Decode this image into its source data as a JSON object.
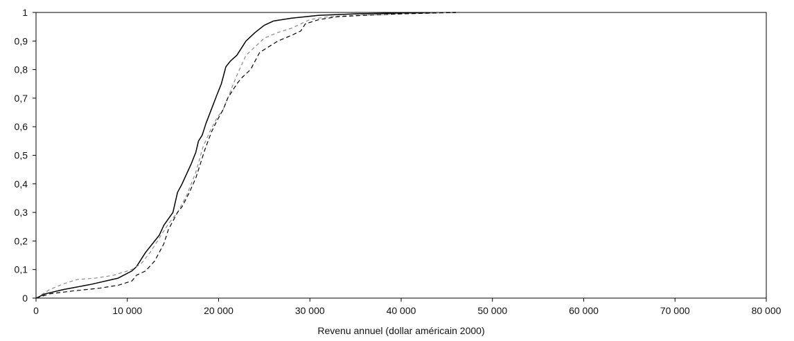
{
  "chart_data": {
    "type": "line",
    "title": "",
    "xlabel": "Revenu annuel (dollar américain 2000)",
    "ylabel": "",
    "xlim": [
      0,
      80000
    ],
    "ylim": [
      0,
      1
    ],
    "grid": false,
    "legend": "none",
    "x_ticks": [
      0,
      10000,
      20000,
      30000,
      40000,
      50000,
      60000,
      70000,
      80000
    ],
    "x_tick_labels": [
      "0",
      "10 000",
      "20 000",
      "30 000",
      "40 000",
      "50 000",
      "60 000",
      "70 000",
      "80 000"
    ],
    "y_ticks": [
      0,
      0.1,
      0.2,
      0.3,
      0.4,
      0.5,
      0.6,
      0.7,
      0.8,
      0.9,
      1
    ],
    "y_tick_labels": [
      "0",
      "0,1",
      "0,2",
      "0,3",
      "0,4",
      "0,5",
      "0,6",
      "0,7",
      "0,8",
      "0,9",
      "1"
    ],
    "series": [
      {
        "style": {
          "color": "#000000",
          "dash": "solid",
          "width": 1.5
        },
        "points": [
          [
            0,
            0
          ],
          [
            1000,
            0.015
          ],
          [
            3000,
            0.03
          ],
          [
            6000,
            0.048
          ],
          [
            9000,
            0.07
          ],
          [
            10500,
            0.095
          ],
          [
            11000,
            0.11
          ],
          [
            12000,
            0.16
          ],
          [
            13000,
            0.2
          ],
          [
            13500,
            0.22
          ],
          [
            14000,
            0.255
          ],
          [
            15000,
            0.3
          ],
          [
            15500,
            0.37
          ],
          [
            16000,
            0.4
          ],
          [
            17000,
            0.47
          ],
          [
            17500,
            0.51
          ],
          [
            17800,
            0.55
          ],
          [
            18200,
            0.57
          ],
          [
            18600,
            0.61
          ],
          [
            19200,
            0.66
          ],
          [
            19800,
            0.71
          ],
          [
            20300,
            0.75
          ],
          [
            20800,
            0.81
          ],
          [
            21300,
            0.83
          ],
          [
            22000,
            0.85
          ],
          [
            23000,
            0.9
          ],
          [
            24000,
            0.93
          ],
          [
            25000,
            0.955
          ],
          [
            26000,
            0.97
          ],
          [
            28000,
            0.98
          ],
          [
            31000,
            0.99
          ],
          [
            35000,
            0.995
          ],
          [
            40000,
            0.998
          ],
          [
            46000,
            1
          ]
        ]
      },
      {
        "style": {
          "color": "#888888",
          "dash": "5,4",
          "width": 1.2
        },
        "points": [
          [
            0,
            0
          ],
          [
            1500,
            0.03
          ],
          [
            3000,
            0.05
          ],
          [
            4500,
            0.065
          ],
          [
            6500,
            0.07
          ],
          [
            8500,
            0.08
          ],
          [
            10500,
            0.1
          ],
          [
            11500,
            0.12
          ],
          [
            12500,
            0.16
          ],
          [
            13500,
            0.21
          ],
          [
            14500,
            0.26
          ],
          [
            15500,
            0.3
          ],
          [
            16500,
            0.36
          ],
          [
            17500,
            0.44
          ],
          [
            18300,
            0.53
          ],
          [
            19000,
            0.58
          ],
          [
            19800,
            0.63
          ],
          [
            20500,
            0.66
          ],
          [
            21000,
            0.7
          ],
          [
            21500,
            0.74
          ],
          [
            22000,
            0.78
          ],
          [
            23000,
            0.85
          ],
          [
            24000,
            0.88
          ],
          [
            25000,
            0.91
          ],
          [
            26500,
            0.93
          ],
          [
            28000,
            0.945
          ],
          [
            29000,
            0.96
          ],
          [
            30000,
            0.975
          ],
          [
            32000,
            0.985
          ],
          [
            35000,
            0.99
          ],
          [
            40000,
            0.995
          ],
          [
            46000,
            1
          ]
        ]
      },
      {
        "style": {
          "color": "#000000",
          "dash": "6,4",
          "width": 1.2
        },
        "points": [
          [
            0,
            0
          ],
          [
            1500,
            0.015
          ],
          [
            4000,
            0.025
          ],
          [
            7000,
            0.035
          ],
          [
            9000,
            0.045
          ],
          [
            10500,
            0.06
          ],
          [
            11000,
            0.08
          ],
          [
            12000,
            0.095
          ],
          [
            13000,
            0.13
          ],
          [
            14000,
            0.19
          ],
          [
            14500,
            0.24
          ],
          [
            15000,
            0.27
          ],
          [
            15500,
            0.3
          ],
          [
            16000,
            0.32
          ],
          [
            16800,
            0.37
          ],
          [
            17500,
            0.42
          ],
          [
            18000,
            0.47
          ],
          [
            18500,
            0.52
          ],
          [
            19200,
            0.58
          ],
          [
            19800,
            0.62
          ],
          [
            20500,
            0.66
          ],
          [
            21000,
            0.7
          ],
          [
            22000,
            0.75
          ],
          [
            22500,
            0.77
          ],
          [
            23500,
            0.8
          ],
          [
            24500,
            0.86
          ],
          [
            25500,
            0.88
          ],
          [
            26500,
            0.9
          ],
          [
            28000,
            0.92
          ],
          [
            29000,
            0.935
          ],
          [
            29500,
            0.96
          ],
          [
            31000,
            0.975
          ],
          [
            33000,
            0.985
          ],
          [
            36000,
            0.99
          ],
          [
            40000,
            0.995
          ],
          [
            46000,
            1
          ]
        ]
      }
    ]
  }
}
